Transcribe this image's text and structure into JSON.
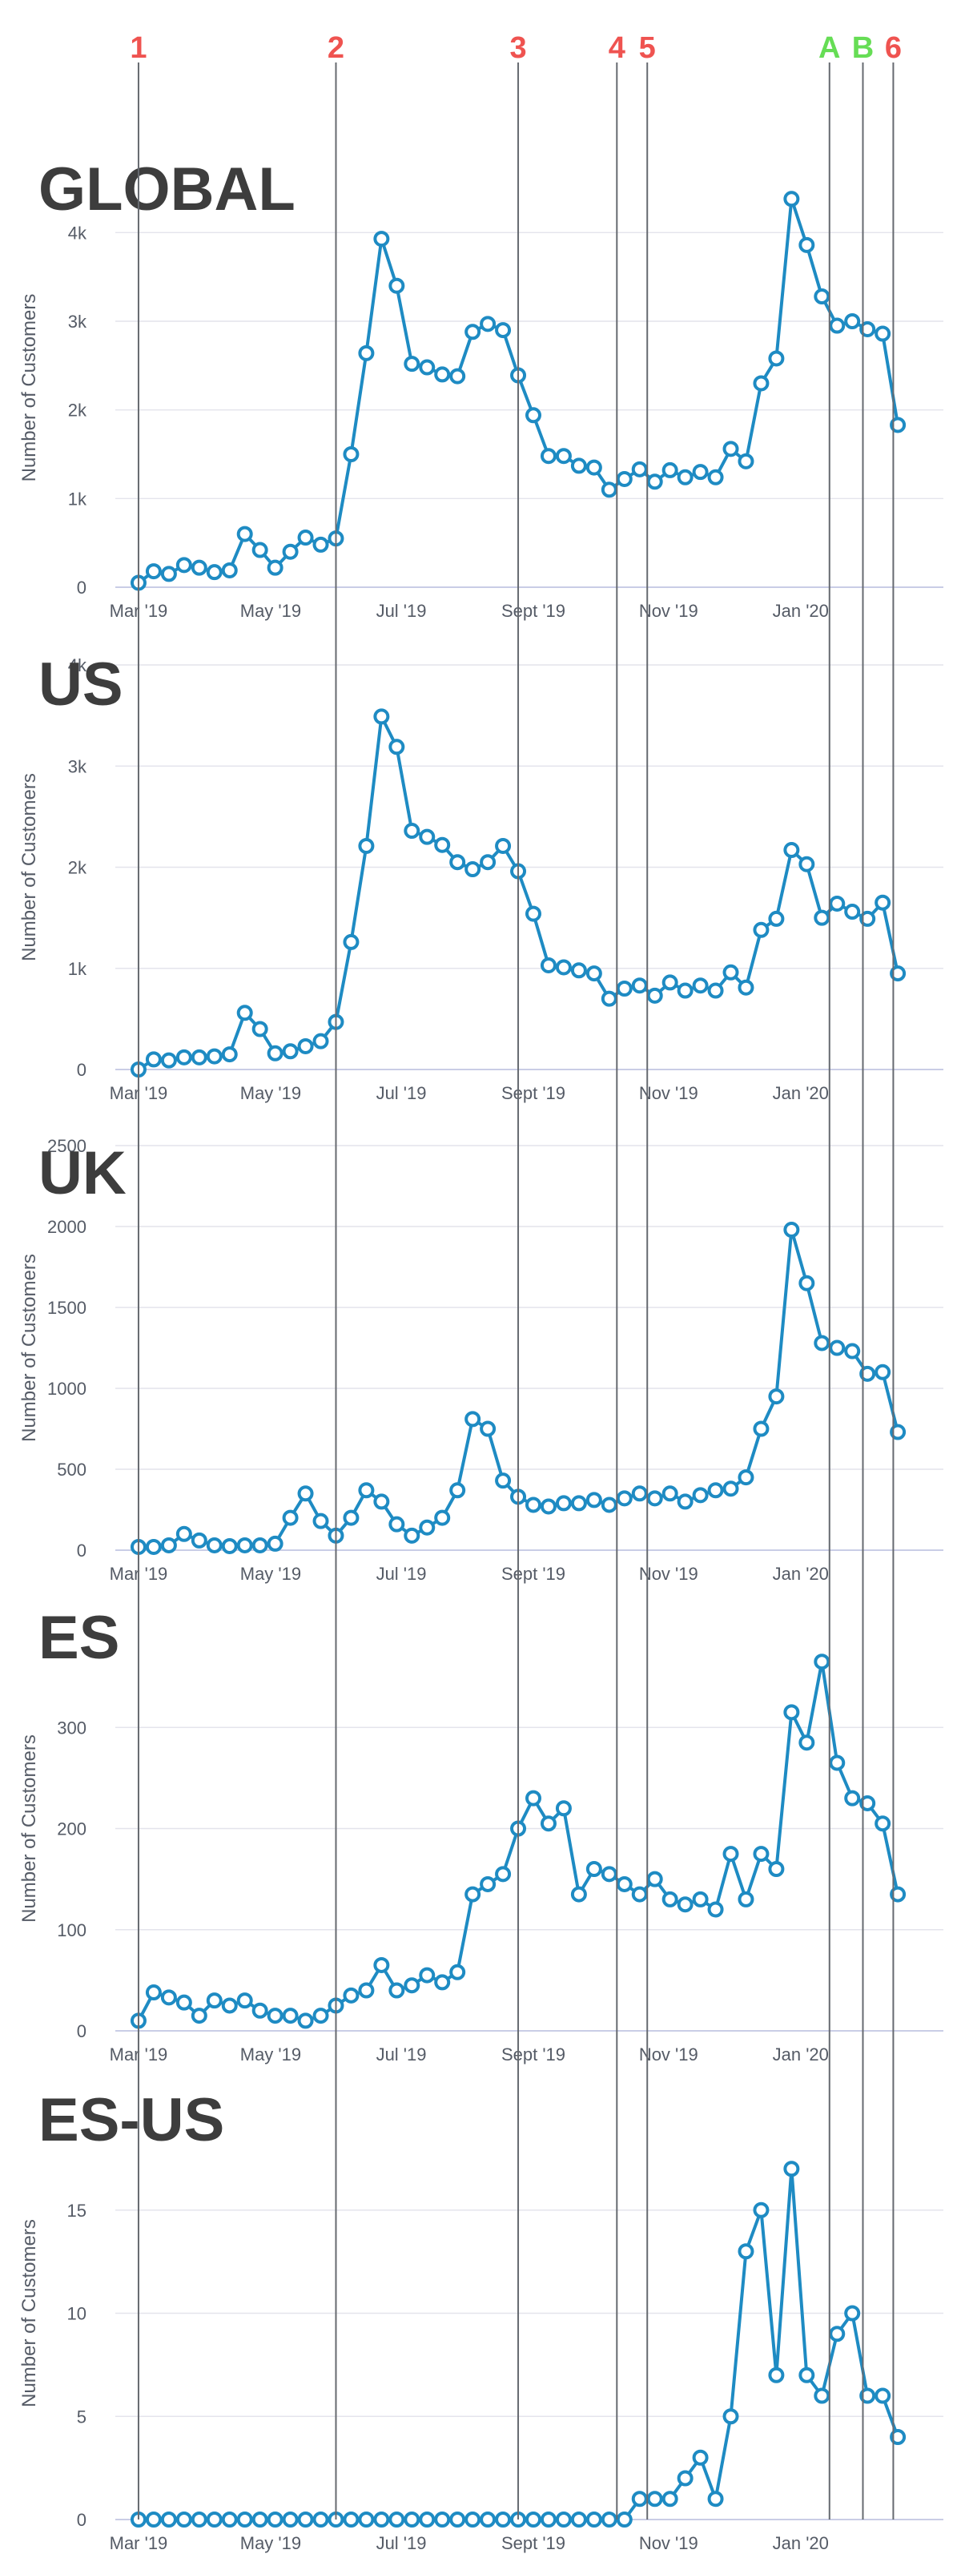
{
  "colors": {
    "series": "#1e8bc3",
    "marker_numeric": "#ef5350",
    "marker_alpha": "#66dd55",
    "title": "#3d3d3d"
  },
  "markers": [
    {
      "label": "1",
      "x": 0.0,
      "color": "#ef5350"
    },
    {
      "label": "2",
      "x": 13.0,
      "color": "#ef5350"
    },
    {
      "label": "3",
      "x": 25.0,
      "color": "#ef5350"
    },
    {
      "label": "4",
      "x": 31.5,
      "color": "#ef5350"
    },
    {
      "label": "5",
      "x": 33.5,
      "color": "#ef5350"
    },
    {
      "label": "A",
      "x": 45.5,
      "color": "#66dd55"
    },
    {
      "label": "B",
      "x": 47.7,
      "color": "#66dd55"
    },
    {
      "label": "6",
      "x": 49.7,
      "color": "#ef5350"
    }
  ],
  "chart_data": [
    {
      "type": "line",
      "title": "GLOBAL",
      "ylabel": "Number of Customers",
      "yticks": [
        0,
        1000,
        2000,
        3000,
        4000
      ],
      "ytick_labels": [
        "0",
        "1k",
        "2k",
        "3k",
        "4k"
      ],
      "ylim": [
        0,
        4500
      ],
      "xticks": [
        0,
        8.7,
        17.3,
        26,
        34.9,
        43.6
      ],
      "xtick_labels": [
        "Mar '19",
        "May '19",
        "Jul '19",
        "Sept '19",
        "Nov '19",
        "Jan '20"
      ],
      "xlim": [
        -1,
        53
      ],
      "grid": true,
      "series": [
        {
          "values": [
            50,
            180,
            150,
            250,
            220,
            170,
            190,
            600,
            420,
            220,
            400,
            560,
            480,
            550,
            1500,
            2640,
            3930,
            3400,
            2520,
            2480,
            2400,
            2380,
            2880,
            2970,
            2900,
            2390,
            1940,
            1480,
            1480,
            1370,
            1350,
            1100,
            1220,
            1330,
            1190,
            1320,
            1240,
            1300,
            1240,
            1560,
            1420,
            2300,
            2580,
            4380,
            3860,
            3280,
            2950,
            3000,
            2910,
            2860,
            1830
          ]
        }
      ]
    },
    {
      "type": "line",
      "title": "US",
      "ylabel": "Number of Customers",
      "yticks": [
        0,
        1000,
        2000,
        3000,
        4000
      ],
      "ytick_labels": [
        "0",
        "1k",
        "2k",
        "3k",
        "4k"
      ],
      "ylim": [
        0,
        4000
      ],
      "xticks": [
        0,
        8.7,
        17.3,
        26,
        34.9,
        43.6
      ],
      "xtick_labels": [
        "Mar '19",
        "May '19",
        "Jul '19",
        "Sept '19",
        "Nov '19",
        "Jan '20"
      ],
      "xlim": [
        -1,
        53
      ],
      "grid": true,
      "series": [
        {
          "values": [
            0,
            100,
            90,
            120,
            120,
            130,
            150,
            560,
            400,
            160,
            180,
            230,
            280,
            470,
            1260,
            2210,
            3490,
            3190,
            2360,
            2300,
            2220,
            2050,
            1980,
            2050,
            2210,
            1960,
            1540,
            1030,
            1010,
            980,
            950,
            700,
            800,
            830,
            730,
            860,
            780,
            830,
            780,
            960,
            810,
            1380,
            1490,
            2170,
            2030,
            1500,
            1640,
            1560,
            1490,
            1650,
            950
          ]
        }
      ]
    },
    {
      "type": "line",
      "title": "UK",
      "ylabel": "Number of Customers",
      "yticks": [
        0,
        500,
        1000,
        1500,
        2000,
        2500
      ],
      "ytick_labels": [
        "0",
        "500",
        "1000",
        "1500",
        "2000",
        "2500"
      ],
      "ylim": [
        0,
        2500
      ],
      "xticks": [
        0,
        8.7,
        17.3,
        26,
        34.9,
        43.6
      ],
      "xtick_labels": [
        "Mar '19",
        "May '19",
        "Jul '19",
        "Sept '19",
        "Nov '19",
        "Jan '20"
      ],
      "xlim": [
        -1,
        53
      ],
      "grid": true,
      "series": [
        {
          "values": [
            20,
            20,
            30,
            100,
            60,
            30,
            25,
            30,
            30,
            40,
            200,
            350,
            180,
            90,
            200,
            370,
            300,
            160,
            90,
            140,
            200,
            370,
            810,
            750,
            430,
            330,
            280,
            270,
            290,
            290,
            310,
            280,
            320,
            350,
            320,
            350,
            300,
            340,
            370,
            380,
            450,
            750,
            950,
            1980,
            1650,
            1280,
            1250,
            1230,
            1090,
            1100,
            730
          ]
        }
      ]
    },
    {
      "type": "line",
      "title": "ES",
      "ylabel": "Number of Customers",
      "yticks": [
        0,
        100,
        200,
        300
      ],
      "ytick_labels": [
        "0",
        "100",
        "200",
        "300"
      ],
      "ylim": [
        0,
        400
      ],
      "xticks": [
        0,
        8.7,
        17.3,
        26,
        34.9,
        43.6
      ],
      "xtick_labels": [
        "Mar '19",
        "May '19",
        "Jul '19",
        "Sept '19",
        "Nov '19",
        "Jan '20"
      ],
      "xlim": [
        -1,
        53
      ],
      "grid": true,
      "series": [
        {
          "values": [
            10,
            38,
            33,
            28,
            15,
            30,
            25,
            30,
            20,
            15,
            15,
            10,
            15,
            25,
            35,
            40,
            65,
            40,
            45,
            55,
            48,
            58,
            135,
            145,
            155,
            200,
            230,
            205,
            220,
            135,
            160,
            155,
            145,
            135,
            150,
            130,
            125,
            130,
            120,
            175,
            130,
            175,
            160,
            315,
            285,
            365,
            265,
            230,
            225,
            205,
            135
          ]
        }
      ]
    },
    {
      "type": "line",
      "title": "ES-US",
      "ylabel": "Number of Customers",
      "yticks": [
        0,
        5,
        10,
        15
      ],
      "ytick_labels": [
        "0",
        "5",
        "10",
        "15"
      ],
      "ylim": [
        0,
        20
      ],
      "xticks": [
        0,
        8.7,
        17.3,
        26,
        34.9,
        43.6
      ],
      "xtick_labels": [
        "Mar '19",
        "May '19",
        "Jul '19",
        "Sept '19",
        "Nov '19",
        "Jan '20"
      ],
      "xlim": [
        -1,
        53
      ],
      "grid": true,
      "series": [
        {
          "values": [
            0,
            0,
            0,
            0,
            0,
            0,
            0,
            0,
            0,
            0,
            0,
            0,
            0,
            0,
            0,
            0,
            0,
            0,
            0,
            0,
            0,
            0,
            0,
            0,
            0,
            0,
            0,
            0,
            0,
            0,
            0,
            0,
            0,
            1,
            1,
            1,
            2,
            3,
            1,
            5,
            13,
            15,
            7,
            17,
            7,
            6,
            9,
            10,
            6,
            6,
            4
          ]
        }
      ]
    }
  ]
}
